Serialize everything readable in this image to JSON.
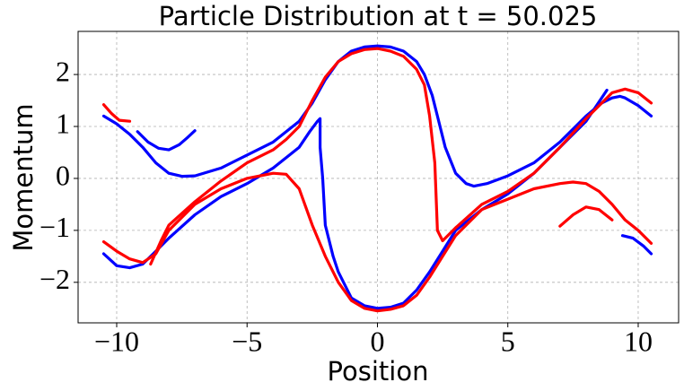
{
  "chart_data": {
    "type": "scatter",
    "title": "Particle Distribution at t = 50.025",
    "x_label": "Position",
    "y_label": "Momentum",
    "xlim": [
      -11.48,
      11.55
    ],
    "ylim": [
      -2.78,
      2.83
    ],
    "grid": true,
    "xticks": [
      {
        "value": -10,
        "label": "−10"
      },
      {
        "value": -5,
        "label": "−5"
      },
      0,
      5,
      10
    ],
    "yticks": [
      {
        "value": -2,
        "label": "−2"
      },
      {
        "value": -1,
        "label": "−1"
      },
      0,
      1,
      2
    ],
    "series": [
      {
        "color": "#0000ff",
        "x": [
          -10.5,
          -10,
          -9.5,
          -9,
          -8.5,
          -8,
          -7.5,
          -7,
          -6,
          -5,
          -4,
          -3,
          -2.5,
          -2,
          -1.5,
          -1,
          -0.5,
          0,
          0.5,
          1,
          1.5,
          1.8,
          2.1,
          2.3,
          2.6,
          3,
          3.4,
          3.7,
          4.2,
          5,
          6,
          7,
          8,
          8.6,
          9,
          9.3,
          9.5,
          10,
          10.5
        ],
        "values": [
          1.2,
          1.05,
          0.85,
          0.6,
          0.3,
          0.1,
          0.04,
          0.05,
          0.2,
          0.45,
          0.7,
          1.1,
          1.45,
          1.9,
          2.25,
          2.45,
          2.53,
          2.55,
          2.53,
          2.45,
          2.25,
          2.0,
          1.6,
          1.2,
          0.6,
          0.1,
          -0.1,
          -0.15,
          -0.1,
          0.05,
          0.3,
          0.7,
          1.2,
          1.45,
          1.55,
          1.58,
          1.55,
          1.4,
          1.2
        ]
      },
      {
        "color": "#0000ff",
        "x": [
          -10.5,
          -10,
          -9.5,
          -9,
          -8.5,
          -8,
          -7,
          -6,
          -5,
          -4,
          -3,
          -2.6,
          -2.3,
          -2.2,
          -2.2,
          -2.1,
          -2,
          -1.7,
          -1.5,
          -1,
          -0.5,
          0,
          0.5,
          1,
          1.5,
          2,
          2.5,
          3,
          4,
          5,
          6,
          7,
          8,
          8.8
        ],
        "values": [
          -1.45,
          -1.68,
          -1.72,
          -1.65,
          -1.4,
          -1.15,
          -0.7,
          -0.35,
          -0.1,
          0.2,
          0.6,
          0.9,
          1.1,
          1.15,
          0.6,
          0.0,
          -0.9,
          -1.5,
          -1.8,
          -2.3,
          -2.45,
          -2.5,
          -2.48,
          -2.4,
          -2.15,
          -1.8,
          -1.4,
          -1.0,
          -0.6,
          -0.3,
          0.1,
          0.6,
          1.1,
          1.7
        ]
      },
      {
        "color": "#0000ff",
        "x": [
          -9.2,
          -8.8,
          -8.4,
          -8,
          -7.6,
          -7.3,
          -7
        ],
        "values": [
          0.9,
          0.7,
          0.58,
          0.55,
          0.65,
          0.78,
          0.92
        ]
      },
      {
        "color": "#0000ff",
        "x": [
          9.4,
          9.8,
          10.2,
          10.5
        ],
        "values": [
          -1.1,
          -1.15,
          -1.3,
          -1.45
        ]
      },
      {
        "color": "#ff0000",
        "x": [
          -10.5,
          -10.2,
          -9.9,
          -9.5
        ],
        "values": [
          1.42,
          1.25,
          1.12,
          1.1
        ]
      },
      {
        "color": "#ff0000",
        "x": [
          -10.5,
          -10,
          -9.5,
          -9,
          -8.5,
          -8,
          -7,
          -6,
          -5,
          -4,
          -3.5,
          -3,
          -2.5,
          -2,
          -1.5,
          -1,
          -0.5,
          0,
          0.5,
          1,
          1.5,
          2,
          2.5,
          3,
          4,
          5,
          6,
          7,
          7.5,
          8,
          8.5,
          9,
          9.5,
          10,
          10.5
        ],
        "values": [
          -1.22,
          -1.4,
          -1.55,
          -1.62,
          -1.45,
          -1.0,
          -0.5,
          -0.2,
          0.0,
          0.1,
          0.08,
          -0.2,
          -0.9,
          -1.5,
          -2.0,
          -2.35,
          -2.5,
          -2.55,
          -2.52,
          -2.45,
          -2.25,
          -1.9,
          -1.5,
          -1.1,
          -0.6,
          -0.4,
          -0.2,
          -0.1,
          -0.07,
          -0.1,
          -0.25,
          -0.5,
          -0.8,
          -1.0,
          -1.25
        ]
      },
      {
        "color": "#ff0000",
        "x": [
          -8.7,
          -8.3,
          -8,
          -7,
          -6,
          -5,
          -4,
          -3.5,
          -3,
          -2.5,
          -2,
          -1.5,
          -1,
          -0.5,
          0,
          0.5,
          1,
          1.5,
          1.8,
          2,
          2.2,
          2.3,
          2.5,
          3,
          4,
          5,
          6,
          7,
          8,
          9,
          9.5,
          10,
          10.5
        ],
        "values": [
          -1.65,
          -1.2,
          -0.9,
          -0.45,
          -0.05,
          0.3,
          0.55,
          0.75,
          1.0,
          1.5,
          1.95,
          2.25,
          2.4,
          2.48,
          2.5,
          2.45,
          2.35,
          2.1,
          1.8,
          1.2,
          0.3,
          -1.0,
          -1.2,
          -0.95,
          -0.5,
          -0.25,
          0.1,
          0.6,
          1.15,
          1.65,
          1.72,
          1.65,
          1.45
        ]
      },
      {
        "color": "#ff0000",
        "x": [
          7,
          7.5,
          8,
          8.5,
          9
        ],
        "values": [
          -0.92,
          -0.7,
          -0.55,
          -0.6,
          -0.8
        ]
      }
    ]
  }
}
